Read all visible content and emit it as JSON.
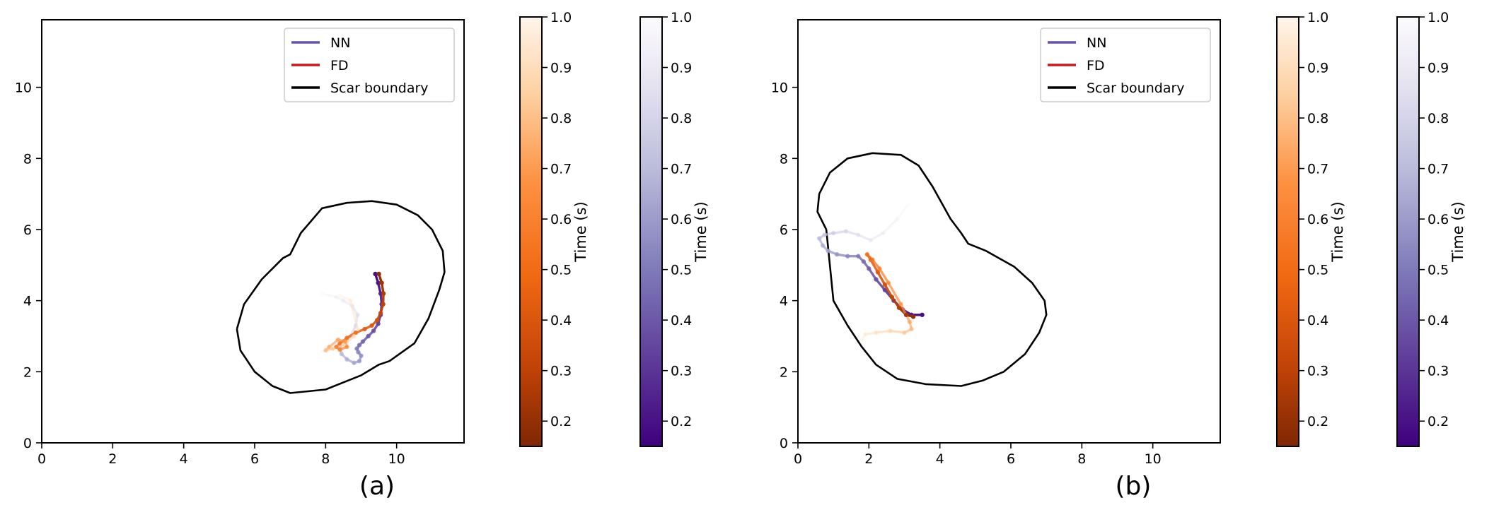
{
  "chart_data": [
    {
      "type": "line",
      "panel_label": "(a)",
      "xlim": [
        0,
        11.9
      ],
      "ylim": [
        0,
        11.9
      ],
      "xticks": [
        0,
        2,
        4,
        6,
        8,
        10
      ],
      "yticks": [
        0,
        2,
        4,
        6,
        8,
        10
      ],
      "legend": {
        "placement": "upper-right",
        "entries": [
          {
            "label": "NN",
            "color": "#6a51a3"
          },
          {
            "label": "FD",
            "color": "#cb181d"
          },
          {
            "label": "Scar boundary",
            "color": "#000000"
          }
        ]
      },
      "series": [
        {
          "name": "Scar boundary",
          "color": "#000000",
          "x": [
            5.5,
            5.7,
            6.2,
            6.8,
            7.0,
            7.3,
            7.9,
            8.6,
            9.3,
            10.0,
            10.6,
            11.0,
            11.3,
            11.35,
            11.2,
            10.9,
            10.5,
            9.8,
            9.5,
            9.0,
            8.5,
            8.0,
            7.5,
            7.0,
            6.5,
            6.0,
            5.6,
            5.5
          ],
          "y": [
            3.2,
            3.9,
            4.6,
            5.2,
            5.3,
            5.9,
            6.6,
            6.75,
            6.8,
            6.7,
            6.4,
            6.0,
            5.4,
            4.8,
            4.3,
            3.5,
            2.8,
            2.3,
            2.2,
            1.9,
            1.7,
            1.5,
            1.45,
            1.4,
            1.6,
            2.0,
            2.6,
            3.2
          ]
        },
        {
          "name": "NN",
          "color": "#6a51a3",
          "t0": 0.15,
          "t1": 1.0,
          "x": [
            9.4,
            9.48,
            9.55,
            9.58,
            9.55,
            9.48,
            9.35,
            9.2,
            9.05,
            8.95,
            8.88,
            8.92,
            9.0,
            8.95,
            8.8,
            8.6,
            8.45,
            8.4,
            8.5,
            8.7,
            8.85,
            8.9,
            8.75,
            8.5,
            8.3,
            8.1,
            7.9
          ],
          "y": [
            4.75,
            4.5,
            4.2,
            3.9,
            3.6,
            3.35,
            3.15,
            3.0,
            2.85,
            2.75,
            2.65,
            2.55,
            2.45,
            2.3,
            2.25,
            2.35,
            2.5,
            2.7,
            2.85,
            3.0,
            3.3,
            3.6,
            3.85,
            4.0,
            4.1,
            4.15,
            4.2
          ]
        },
        {
          "name": "FD",
          "color": "#cb181d",
          "t0": 0.15,
          "t1": 1.0,
          "x": [
            9.5,
            9.58,
            9.63,
            9.62,
            9.55,
            9.45,
            9.3,
            9.1,
            8.85,
            8.6,
            8.4,
            8.3,
            8.4,
            8.6,
            8.55,
            8.35,
            8.1,
            8.0,
            8.2,
            8.5,
            8.8,
            8.9,
            8.7,
            8.4
          ],
          "y": [
            4.75,
            4.5,
            4.2,
            3.9,
            3.65,
            3.45,
            3.3,
            3.2,
            3.1,
            2.95,
            2.8,
            2.7,
            2.62,
            2.7,
            2.85,
            2.9,
            2.7,
            2.6,
            2.65,
            2.75,
            3.0,
            3.2,
            4.0,
            4.15
          ]
        }
      ],
      "colorbars": [
        {
          "label": "Time (s)",
          "colormap": "Oranges_r",
          "range": [
            0.15,
            1.0
          ],
          "ticks": [
            "0.2",
            "0.3",
            "0.4",
            "0.5",
            "0.6",
            "0.7",
            "0.8",
            "0.9",
            "1.0"
          ]
        },
        {
          "label": "Time (s)",
          "colormap": "Purples_r",
          "range": [
            0.15,
            1.0
          ],
          "ticks": [
            "0.2",
            "0.3",
            "0.4",
            "0.5",
            "0.6",
            "0.7",
            "0.8",
            "0.9",
            "1.0"
          ]
        }
      ]
    },
    {
      "type": "line",
      "panel_label": "(b)",
      "xlim": [
        0,
        11.9
      ],
      "ylim": [
        0,
        11.9
      ],
      "xticks": [
        0,
        2,
        4,
        6,
        8,
        10
      ],
      "yticks": [
        0,
        2,
        4,
        6,
        8,
        10
      ],
      "legend": {
        "placement": "upper-right",
        "entries": [
          {
            "label": "NN",
            "color": "#6a51a3"
          },
          {
            "label": "FD",
            "color": "#cb181d"
          },
          {
            "label": "Scar boundary",
            "color": "#000000"
          }
        ]
      },
      "series": [
        {
          "name": "Scar boundary",
          "color": "#000000",
          "x": [
            0.8,
            0.55,
            0.6,
            0.9,
            1.4,
            2.1,
            2.9,
            3.4,
            3.8,
            4.3,
            4.6,
            4.8,
            5.3,
            6.1,
            6.6,
            6.95,
            7.0,
            6.8,
            6.4,
            5.8,
            5.2,
            4.6,
            3.6,
            2.8,
            2.2,
            1.8,
            1.4,
            1.0,
            0.8
          ],
          "y": [
            6.0,
            6.5,
            7.0,
            7.6,
            8.0,
            8.15,
            8.1,
            7.8,
            7.2,
            6.3,
            5.9,
            5.6,
            5.4,
            4.95,
            4.5,
            4.0,
            3.6,
            3.1,
            2.5,
            2.0,
            1.75,
            1.6,
            1.65,
            1.8,
            2.2,
            2.7,
            3.3,
            4.0,
            6.0
          ]
        },
        {
          "name": "NN",
          "color": "#6a51a3",
          "t0": 0.15,
          "t1": 1.0,
          "x": [
            3.5,
            3.2,
            2.95,
            2.7,
            2.45,
            2.2,
            2.0,
            1.85,
            1.7,
            1.4,
            1.1,
            0.85,
            0.7,
            0.6,
            0.75,
            1.0,
            1.35,
            1.7,
            2.05,
            2.4,
            2.8,
            3.1
          ],
          "y": [
            3.6,
            3.6,
            3.75,
            4.0,
            4.3,
            4.6,
            4.9,
            5.1,
            5.25,
            5.25,
            5.3,
            5.4,
            5.55,
            5.75,
            5.85,
            5.9,
            5.95,
            5.85,
            5.7,
            5.9,
            6.3,
            6.7
          ]
        },
        {
          "name": "FD",
          "color": "#cb181d",
          "t0": 0.15,
          "t1": 1.0,
          "x": [
            3.25,
            3.05,
            2.85,
            2.65,
            2.45,
            2.25,
            2.05,
            1.95,
            2.1,
            2.3,
            2.55,
            2.9,
            3.15,
            3.2,
            3.0,
            2.6,
            2.2,
            1.9,
            1.8
          ],
          "y": [
            3.55,
            3.6,
            3.8,
            4.1,
            4.45,
            4.8,
            5.15,
            5.3,
            5.15,
            4.9,
            4.5,
            3.9,
            3.4,
            3.2,
            3.1,
            3.15,
            3.1,
            3.05,
            2.9
          ]
        }
      ],
      "colorbars": [
        {
          "label": "Time (s)",
          "colormap": "Oranges_r",
          "range": [
            0.15,
            1.0
          ],
          "ticks": [
            "0.2",
            "0.3",
            "0.4",
            "0.5",
            "0.6",
            "0.7",
            "0.8",
            "0.9",
            "1.0"
          ]
        },
        {
          "label": "Time (s)",
          "colormap": "Purples_r",
          "range": [
            0.15,
            1.0
          ],
          "ticks": [
            "0.2",
            "0.3",
            "0.4",
            "0.5",
            "0.6",
            "0.7",
            "0.8",
            "0.9",
            "1.0"
          ]
        }
      ]
    }
  ]
}
